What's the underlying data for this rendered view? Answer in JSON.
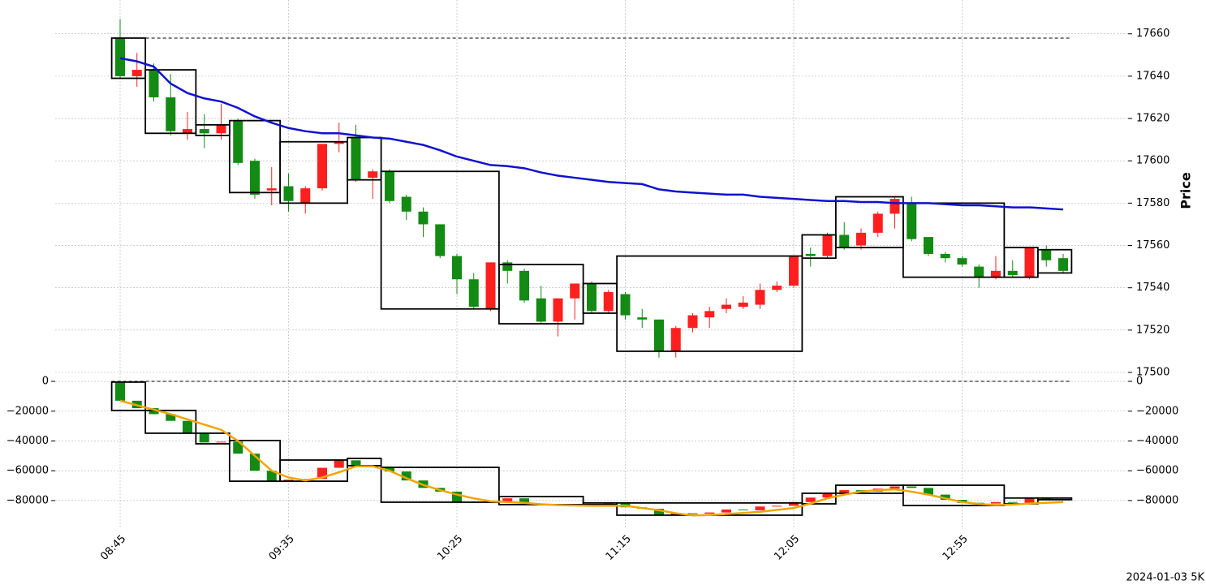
{
  "chart_data": [
    {
      "type": "candlestick",
      "ylabel": "Price",
      "ylim": [
        17500,
        17676
      ],
      "yticks": [
        17500,
        17520,
        17540,
        17560,
        17580,
        17600,
        17620,
        17640,
        17660
      ],
      "up_color": "#ff1f1f",
      "down_color": "#138a13",
      "grid": true,
      "open": [
        17658,
        17640,
        17643,
        17630,
        17613,
        17615,
        17613,
        17619,
        17600,
        17586,
        17588,
        17580,
        17587,
        17608,
        17611,
        17592,
        17595,
        17583,
        17576,
        17570,
        17555,
        17544,
        17530,
        17552,
        17548,
        17535,
        17524,
        17535,
        17542,
        17529,
        17537,
        17526,
        17525,
        17510,
        17521,
        17526,
        17530,
        17531,
        17532,
        17539,
        17541,
        17556,
        17555,
        17565,
        17560,
        17566,
        17575,
        17580,
        17564,
        17556,
        17554,
        17550,
        17545,
        17548,
        17545,
        17558,
        17554
      ],
      "high": [
        17667,
        17651,
        17646,
        17641,
        17623,
        17622,
        17627,
        17620,
        17601,
        17597,
        17594,
        17588,
        17608,
        17618,
        17617,
        17596,
        17596,
        17584,
        17578,
        17570,
        17556,
        17547,
        17552,
        17553,
        17549,
        17541,
        17535,
        17542,
        17543,
        17539,
        17538,
        17530,
        17525,
        17522,
        17528,
        17531,
        17535,
        17536,
        17542,
        17543,
        17555,
        17559,
        17566,
        17571,
        17568,
        17576,
        17583,
        17583,
        17564,
        17557,
        17555,
        17551,
        17555,
        17553,
        17559,
        17560,
        17556
      ],
      "low": [
        17639,
        17635,
        17628,
        17612,
        17610,
        17606,
        17610,
        17598,
        17582,
        17579,
        17576,
        17575,
        17586,
        17604,
        17590,
        17582,
        17580,
        17572,
        17564,
        17554,
        17537,
        17530,
        17529,
        17542,
        17533,
        17523,
        17517,
        17525,
        17528,
        17528,
        17525,
        17521,
        17507,
        17507,
        17519,
        17521,
        17528,
        17530,
        17530,
        17538,
        17540,
        17550,
        17554,
        17558,
        17558,
        17564,
        17568,
        17562,
        17555,
        17552,
        17550,
        17540,
        17544,
        17545,
        17544,
        17550,
        17547
      ],
      "close": [
        17640,
        17643,
        17630,
        17614,
        17615,
        17613,
        17617,
        17599,
        17584,
        17587,
        17581,
        17587,
        17608,
        17609,
        17591,
        17595,
        17581,
        17576,
        17570,
        17555,
        17544,
        17531,
        17552,
        17548,
        17534,
        17524,
        17535,
        17542,
        17529,
        17538,
        17527,
        17525,
        17510,
        17521,
        17527,
        17529,
        17532,
        17533,
        17539,
        17541,
        17555,
        17555,
        17565,
        17559,
        17566,
        17575,
        17582,
        17563,
        17556,
        17554,
        17551,
        17545,
        17548,
        17546,
        17559,
        17553,
        17548
      ],
      "line": {
        "color": "#1010d0",
        "values": [
          17648.5,
          17647,
          17644.5,
          17636.5,
          17632,
          17629.5,
          17628,
          17625,
          17621,
          17618,
          17615.5,
          17614,
          17613,
          17613,
          17612,
          17611,
          17610.5,
          17609,
          17607.5,
          17605,
          17602,
          17600,
          17598,
          17597.5,
          17596.5,
          17594.5,
          17593,
          17592,
          17591,
          17590,
          17589.5,
          17589,
          17586.5,
          17585.5,
          17585,
          17584.5,
          17584,
          17584,
          17583,
          17582.5,
          17582,
          17581.5,
          17581,
          17581,
          17580.5,
          17580.5,
          17580,
          17580,
          17580,
          17579.5,
          17579,
          17579,
          17578.5,
          17578,
          17578,
          17577.5,
          17577
        ]
      },
      "reference": 17658,
      "boxes": [
        [
          0,
          1,
          17658,
          17639
        ],
        [
          2,
          4,
          17643,
          17613
        ],
        [
          5,
          6,
          17617,
          17612
        ],
        [
          7,
          9,
          17619,
          17585
        ],
        [
          10,
          13,
          17609,
          17580
        ],
        [
          14,
          15,
          17611,
          17591
        ],
        [
          16,
          22,
          17595,
          17530
        ],
        [
          23,
          27,
          17551,
          17523
        ],
        [
          28,
          29,
          17542,
          17528
        ],
        [
          30,
          40,
          17555,
          17510
        ],
        [
          41,
          42,
          17565,
          17554
        ],
        [
          43,
          46,
          17583,
          17559
        ],
        [
          47,
          52,
          17580,
          17545
        ],
        [
          53,
          54,
          17559,
          17545
        ],
        [
          55,
          56,
          17558,
          17547
        ]
      ]
    },
    {
      "type": "candlestick",
      "ylim": [
        -98000,
        6000
      ],
      "yticks": [
        0,
        {
          "value": -20000,
          "label": "−20000"
        },
        {
          "value": -40000,
          "label": "−40000"
        },
        {
          "value": -60000,
          "label": "−60000"
        },
        {
          "value": -80000,
          "label": "−80000"
        }
      ],
      "up_color": "#ff1f1f",
      "down_color": "#138a13",
      "grid": true,
      "categories": [
        "08:45",
        null,
        null,
        null,
        null,
        null,
        null,
        null,
        null,
        null,
        "09:35",
        null,
        null,
        null,
        null,
        null,
        null,
        null,
        null,
        null,
        "10:25",
        null,
        null,
        null,
        null,
        null,
        null,
        null,
        null,
        null,
        "11:15",
        null,
        null,
        null,
        null,
        null,
        null,
        null,
        null,
        null,
        "12:05",
        null,
        null,
        null,
        null,
        null,
        null,
        null,
        null,
        null,
        "12:55",
        null,
        null,
        null,
        null,
        null,
        null
      ],
      "footnote": "2024-01-03 5K",
      "open": [
        0,
        -13000,
        -18000,
        -22000,
        -26500,
        -34500,
        -41000,
        -40500,
        -48500,
        -60000,
        -67000,
        -66000,
        -65500,
        -58000,
        -53000,
        -56500,
        -57500,
        -60500,
        -66500,
        -71500,
        -74000,
        -81000,
        -81500,
        -81000,
        -78500,
        -82000,
        -82500,
        -83000,
        -82500,
        -83000,
        -82000,
        -84500,
        -85500,
        -89500,
        -88500,
        -88800,
        -88000,
        -86000,
        -86500,
        -84000,
        -83500,
        -81000,
        -78000,
        -75500,
        -73000,
        -74000,
        -72000,
        -70500,
        -71500,
        -76000,
        -79500,
        -81500,
        -82000,
        -81000,
        -81500,
        -78500,
        -79200
      ],
      "close": [
        -13000,
        -18000,
        -22000,
        -26500,
        -34500,
        -41000,
        -40500,
        -48500,
        -60000,
        -67000,
        -66000,
        -65500,
        -58000,
        -53000,
        -56500,
        -57500,
        -60500,
        -66500,
        -71500,
        -74000,
        -81000,
        -81500,
        -81000,
        -78500,
        -82000,
        -82500,
        -83000,
        -82500,
        -83000,
        -82000,
        -84500,
        -85500,
        -89500,
        -88500,
        -88800,
        -88000,
        -86000,
        -86500,
        -84000,
        -83500,
        -81000,
        -78000,
        -75500,
        -73000,
        -74000,
        -72000,
        -70500,
        -71500,
        -76000,
        -79500,
        -81500,
        -82000,
        -81000,
        -81500,
        -78500,
        -79200,
        -79400
      ],
      "line": {
        "color": "#f0a500",
        "values": [
          -13000,
          -16000,
          -19000,
          -22000,
          -25500,
          -29000,
          -32500,
          -40000,
          -50000,
          -60000,
          -64500,
          -66500,
          -64500,
          -61000,
          -57000,
          -57000,
          -60000,
          -65000,
          -69500,
          -73000,
          -76000,
          -78500,
          -80500,
          -81000,
          -81500,
          -82500,
          -83000,
          -83300,
          -83500,
          -83500,
          -83500,
          -85000,
          -86500,
          -88500,
          -90000,
          -89700,
          -89000,
          -88300,
          -87500,
          -86300,
          -85000,
          -82000,
          -78500,
          -76000,
          -74000,
          -73000,
          -72500,
          -74000,
          -76000,
          -78500,
          -81000,
          -82300,
          -83000,
          -82700,
          -82000,
          -81500,
          -81000
        ]
      },
      "reference": 0,
      "boxes": [
        [
          0,
          1,
          -500,
          -19500
        ],
        [
          2,
          4,
          -19500,
          -34800
        ],
        [
          5,
          6,
          -34800,
          -41900
        ],
        [
          7,
          9,
          -39700,
          -67000
        ],
        [
          10,
          13,
          -52800,
          -67000
        ],
        [
          14,
          15,
          -51700,
          -56600
        ],
        [
          16,
          22,
          -57700,
          -81100
        ],
        [
          23,
          27,
          -77300,
          -82700
        ],
        [
          28,
          29,
          -81600,
          -82700
        ],
        [
          30,
          40,
          -81600,
          -89800
        ],
        [
          41,
          42,
          -75100,
          -82200
        ],
        [
          43,
          46,
          -69700,
          -75100
        ],
        [
          47,
          52,
          -69700,
          -83300
        ],
        [
          53,
          54,
          -78300,
          -82200
        ],
        [
          55,
          56,
          -78300,
          -79400
        ]
      ]
    }
  ]
}
